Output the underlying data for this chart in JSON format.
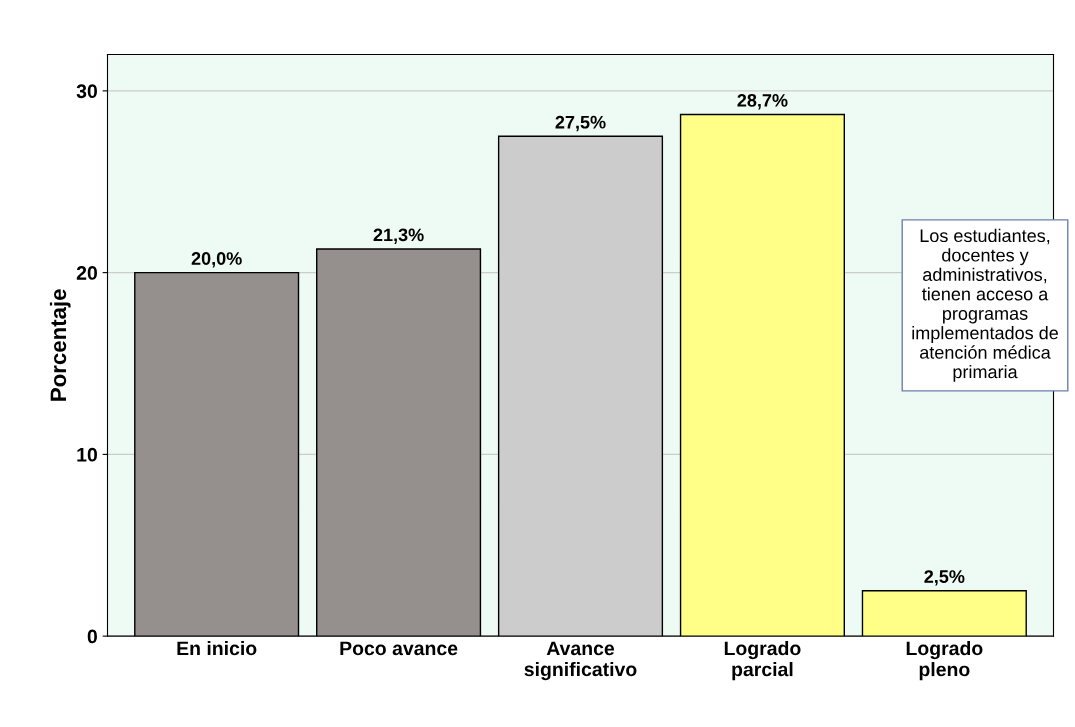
{
  "chart_data": {
    "type": "bar",
    "ylabel": "Porcentaje",
    "categories": [
      "En inicio",
      "Poco avance",
      "Avance\nsignificativo",
      "Logrado\nparcial",
      "Logrado\npleno"
    ],
    "values": [
      20.0,
      21.3,
      27.5,
      28.7,
      2.5
    ],
    "colors": [
      "#958f8d",
      "#958f8d",
      "#cccccc",
      "#ffff88",
      "#ffff88"
    ],
    "value_labels": [
      "20,0%",
      "21,3%",
      "27,5%",
      "28,7%",
      "2,5%"
    ],
    "ylim": [
      0,
      32
    ],
    "yticks": [
      0,
      10,
      20,
      30
    ],
    "grid": "y",
    "annotations": [
      "Los estudiantes, docentes y administrativos, tienen acceso a programas implementados de atención médica primaria"
    ]
  }
}
